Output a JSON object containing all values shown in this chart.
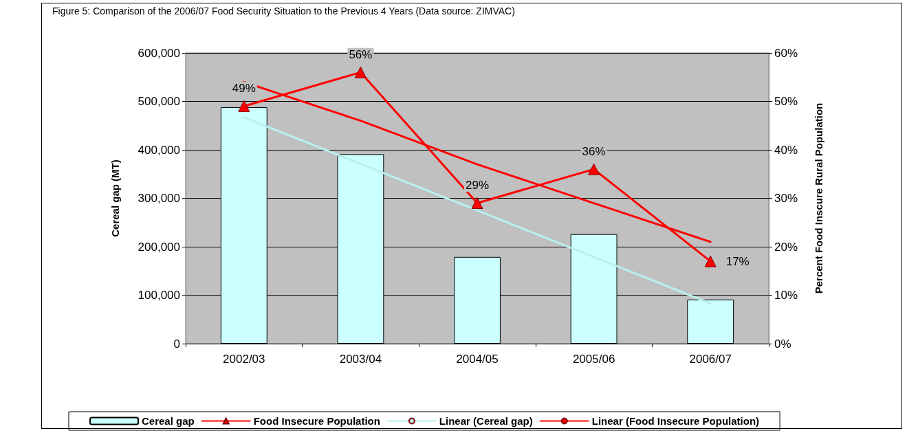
{
  "chart_data": {
    "type": "bar",
    "title": "Figure 5: Comparison of the 2006/07 Food Security Situation to the Previous 4 Years (Data source: ZIMVAC)",
    "ylabel": "Cereal gap (MT)",
    "y2label": "Percent Food Inscure Rural Population",
    "categories": [
      "2002/03",
      "2003/04",
      "2004/05",
      "2005/06",
      "2006/07"
    ],
    "series": [
      {
        "name": "Cereal gap",
        "color": "#ccffff",
        "values": [
          488000,
          391000,
          179000,
          226000,
          91000
        ]
      },
      {
        "name": "Food Insecure Population",
        "type": "line",
        "axis": "y2",
        "color": "#ff0000",
        "marker": "triangle",
        "values": [
          49,
          56,
          29,
          36,
          17
        ],
        "value_labels": [
          "49%",
          "56%",
          "29%",
          "36%",
          "17%"
        ]
      },
      {
        "name": "Linear (Cereal gap)",
        "type": "line",
        "color": "#b8f0f0",
        "marker": "none",
        "values": [
          467000,
          371000,
          275000,
          179000,
          83000
        ]
      },
      {
        "name": "Linear (Food Insecure Population)",
        "type": "line",
        "axis": "y2",
        "color": "#ff0000",
        "marker": "none",
        "values": [
          54,
          46,
          37,
          29,
          21
        ]
      }
    ],
    "ylim": [
      0,
      600000
    ],
    "yticks": [
      {
        "value": 0,
        "label": "0"
      },
      {
        "value": 100000,
        "label": "100,000"
      },
      {
        "value": 200000,
        "label": "200,000"
      },
      {
        "value": 300000,
        "label": "300,000"
      },
      {
        "value": 400000,
        "label": "400,000"
      },
      {
        "value": 500000,
        "label": "500,000"
      },
      {
        "value": 600000,
        "label": "600,000"
      }
    ],
    "y2lim": [
      0,
      60
    ],
    "y2ticks": [
      {
        "value": 0,
        "label": "0%"
      },
      {
        "value": 10,
        "label": "10%"
      },
      {
        "value": 20,
        "label": "20%"
      },
      {
        "value": 30,
        "label": "30%"
      },
      {
        "value": 40,
        "label": "40%"
      },
      {
        "value": 50,
        "label": "50%"
      },
      {
        "value": 60,
        "label": "60%"
      }
    ],
    "grid": "y",
    "legend": "bottom"
  }
}
